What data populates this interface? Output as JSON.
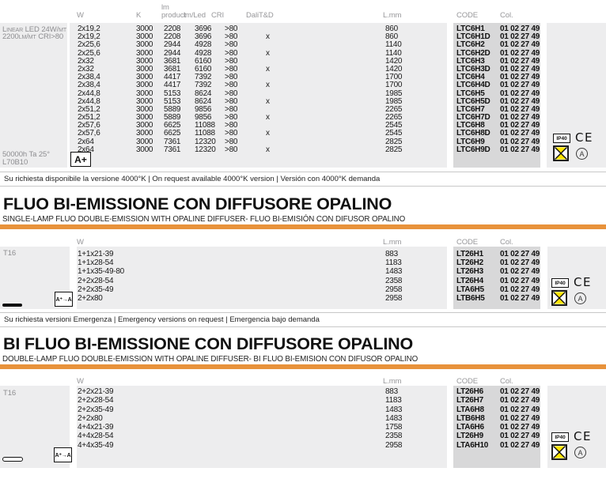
{
  "colors": {
    "accent_orange": "#e8923b",
    "band_light": "#ededee",
    "band_dark": "#d8d8d9",
    "header_text": "#97979a",
    "icon_yellow": "#ffe500"
  },
  "icons": {
    "ip_rating": "IP40",
    "ce_mark": "CE",
    "circled_a": "A"
  },
  "led_table": {
    "product_label": {
      "line1": "Linear LED 24W/mt",
      "line2": "2200lm/mt CRI>80"
    },
    "lifetime": {
      "line1": "50000h Ta 25°",
      "line2": "L70B10"
    },
    "energy_class": "A+",
    "headers": {
      "w": "W",
      "k": "K",
      "lm_line1": "lm",
      "lm_line2": "product",
      "lm_led": "lm/Led",
      "cri": "CRI",
      "dali": "DaliT&D",
      "l_mm": "L.mm",
      "code": "CODE",
      "col": "Col."
    },
    "rows": [
      [
        "2x19,2",
        "3000",
        "2208",
        "3696",
        ">80",
        "",
        "860",
        "LTC6H1",
        "01 02 27 49"
      ],
      [
        "2x19,2",
        "3000",
        "2208",
        "3696",
        ">80",
        "x",
        "860",
        "LTC6H1D",
        "01 02 27 49"
      ],
      [
        "2x25,6",
        "3000",
        "2944",
        "4928",
        ">80",
        "",
        "1140",
        "LTC6H2",
        "01 02 27 49"
      ],
      [
        "2x25,6",
        "3000",
        "2944",
        "4928",
        ">80",
        "x",
        "1140",
        "LTC6H2D",
        "01 02 27 49"
      ],
      [
        "2x32",
        "3000",
        "3681",
        "6160",
        ">80",
        "",
        "1420",
        "LTC6H3",
        "01 02 27 49"
      ],
      [
        "2x32",
        "3000",
        "3681",
        "6160",
        ">80",
        "x",
        "1420",
        "LTC6H3D",
        "01 02 27 49"
      ],
      [
        "2x38,4",
        "3000",
        "4417",
        "7392",
        ">80",
        "",
        "1700",
        "LTC6H4",
        "01 02 27 49"
      ],
      [
        "2x38,4",
        "3000",
        "4417",
        "7392",
        ">80",
        "x",
        "1700",
        "LTC6H4D",
        "01 02 27 49"
      ],
      [
        "2x44,8",
        "3000",
        "5153",
        "8624",
        ">80",
        "",
        "1985",
        "LTC6H5",
        "01 02 27 49"
      ],
      [
        "2x44,8",
        "3000",
        "5153",
        "8624",
        ">80",
        "x",
        "1985",
        "LTC6H5D",
        "01 02 27 49"
      ],
      [
        "2x51,2",
        "3000",
        "5889",
        "9856",
        ">80",
        "",
        "2265",
        "LTC6H7",
        "01 02 27 49"
      ],
      [
        "2x51,2",
        "3000",
        "5889",
        "9856",
        ">80",
        "x",
        "2265",
        "LTC6H7D",
        "01 02 27 49"
      ],
      [
        "2x57,6",
        "3000",
        "6625",
        "11088",
        ">80",
        "",
        "2545",
        "LTC6H8",
        "01 02 27 49"
      ],
      [
        "2x57,6",
        "3000",
        "6625",
        "11088",
        ">80",
        "x",
        "2545",
        "LTC6H8D",
        "01 02 27 49"
      ],
      [
        "2x64",
        "3000",
        "7361",
        "12320",
        ">80",
        "",
        "2825",
        "LTC6H9",
        "01 02 27 49"
      ],
      [
        "2x64",
        "3000",
        "7361",
        "12320",
        ">80",
        "x",
        "2825",
        "LTC6H9D",
        "01 02 27 49"
      ]
    ]
  },
  "notes": {
    "note1": "Su richiesta disponibile la versione 4000°K | On request available 4000°K version | Versión con 4000°K demanda",
    "note2": "Su richiesta versioni Emergenza | Emergency versions on request | Emergencia bajo demanda"
  },
  "fluo_single": {
    "title": "FLUO BI-EMISSIONE CON DIFFUSORE OPALINO",
    "subtitle": "SINGLE-LAMP FLUO DOUBLE-EMISSION WITH OPALINE DIFFUSER- FLUO BI-EMISIÓN CON DIFUSOR OPALINO",
    "lamp_type": "T16",
    "energy_class": "A⁺→A",
    "headers": {
      "w": "W",
      "l_mm": "L.mm",
      "code": "CODE",
      "col": "Col."
    },
    "rows": [
      [
        "1+1x21-39",
        "883",
        "LT26H1",
        "01 02 27 49"
      ],
      [
        "1+1x28-54",
        "1183",
        "LT26H2",
        "01 02 27 49"
      ],
      [
        "1+1x35-49-80",
        "1483",
        "LT26H3",
        "01 02 27 49"
      ],
      [
        "2+2x28-54",
        "2358",
        "LT26H4",
        "01 02 27 49"
      ],
      [
        "2+2x35-49",
        "2958",
        "LTA6H5",
        "01 02 27 49"
      ],
      [
        "2+2x80",
        "2958",
        "LTB6H5",
        "01 02 27 49"
      ]
    ]
  },
  "fluo_double": {
    "title": "BI FLUO BI-EMISSIONE CON DIFFUSORE OPALINO",
    "subtitle": "DOUBLE-LAMP FLUO DOUBLE-EMISSION  WITH OPALINE DIFFUSER- BI FLUO BI-EMISION CON DIFUSOR OPALINO",
    "lamp_type": "T16",
    "energy_class": "A⁺→A",
    "headers": {
      "w": "W",
      "l_mm": "L.mm",
      "code": "CODE",
      "col": "Col."
    },
    "rows": [
      [
        "2+2x21-39",
        "883",
        "LT26H6",
        "01 02 27 49"
      ],
      [
        "2+2x28-54",
        "1183",
        "LT26H7",
        "01 02 27 49"
      ],
      [
        "2+2x35-49",
        "1483",
        "LTA6H8",
        "01 02 27 49"
      ],
      [
        "2+2x80",
        "1483",
        "LTB6H8",
        "01 02 27 49"
      ],
      [
        "4+4x21-39",
        "1758",
        "LTA6H6",
        "01 02 27 49"
      ],
      [
        "4+4x28-54",
        "2358",
        "LT26H9",
        "01 02 27 49"
      ],
      [
        "4+4x35-49",
        "2958",
        "LTA6H10",
        "01 02 27 49"
      ]
    ]
  }
}
